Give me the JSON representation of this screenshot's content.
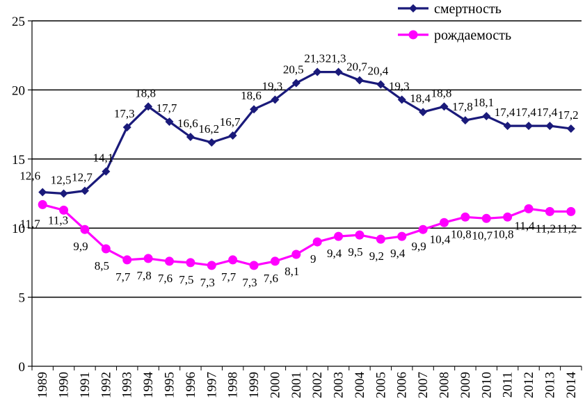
{
  "chart_data": {
    "type": "line",
    "title": "",
    "xlabel": "",
    "ylabel": "",
    "ylim": [
      0,
      25
    ],
    "yticks": [
      0,
      5,
      10,
      15,
      20,
      25
    ],
    "grid": "horizontal",
    "legend_position": "top-right",
    "categories": [
      "1989",
      "1990",
      "1991",
      "1992",
      "1993",
      "1994",
      "1995",
      "1996",
      "1997",
      "1998",
      "1999",
      "2000",
      "2001",
      "2002",
      "2003",
      "2004",
      "2005",
      "2006",
      "2007",
      "2008",
      "2009",
      "2010",
      "2011",
      "2012",
      "2013",
      "2014"
    ],
    "series": [
      {
        "name": "смертность",
        "color": "#1a1a7a",
        "marker": "diamond",
        "values": [
          12.6,
          12.5,
          12.7,
          14.1,
          17.3,
          18.8,
          17.7,
          16.6,
          16.2,
          16.7,
          18.6,
          19.3,
          20.5,
          21.3,
          21.3,
          20.7,
          20.4,
          19.3,
          18.4,
          18.8,
          17.8,
          18.1,
          17.4,
          17.4,
          17.4,
          17.2
        ],
        "labels": [
          "12,6",
          "12,5",
          "12,7",
          "14,1",
          "17,3",
          "18,8",
          "17,7",
          "16,6",
          "16,2",
          "16,7",
          "18,6",
          "19,3",
          "20,5",
          "21,3",
          "21,3",
          "20,7",
          "20,4",
          "19,3",
          "18,4",
          "18,8",
          "17,8",
          "18,1",
          "17,4",
          "17,4",
          "17,4",
          "17,2"
        ]
      },
      {
        "name": "рождаемость",
        "color": "#ff00ff",
        "marker": "circle",
        "values": [
          11.7,
          11.3,
          9.9,
          8.5,
          7.7,
          7.8,
          7.6,
          7.5,
          7.3,
          7.7,
          7.3,
          7.6,
          8.1,
          9.0,
          9.4,
          9.5,
          9.2,
          9.4,
          9.9,
          10.4,
          10.8,
          10.7,
          10.8,
          11.4,
          11.2,
          11.2
        ],
        "labels": [
          "11,7",
          "11,3",
          "9,9",
          "8,5",
          "7,7",
          "7,8",
          "7,6",
          "7,5",
          "7,3",
          "7,7",
          "7,3",
          "7,6",
          "8,1",
          "9",
          "9,4",
          "9,5",
          "9,2",
          "9,4",
          "9,9",
          "10,4",
          "10,8",
          "10,7",
          "10,8",
          "11,4",
          "11,2",
          "11,2"
        ]
      }
    ]
  }
}
